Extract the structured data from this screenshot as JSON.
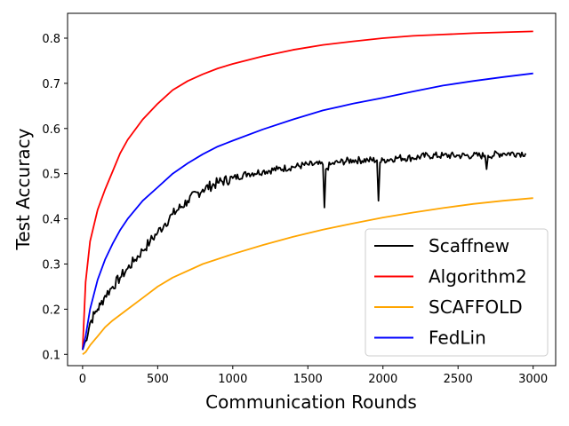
{
  "chart_data": {
    "type": "line",
    "title": "",
    "xlabel": "Communication Rounds",
    "ylabel": "Test Accuracy",
    "xlim": [
      -100,
      3150
    ],
    "ylim": [
      0.075,
      0.855
    ],
    "xticks": [
      0,
      500,
      1000,
      1500,
      2000,
      2500,
      3000
    ],
    "yticks": [
      0.1,
      0.2,
      0.3,
      0.4,
      0.5,
      0.6,
      0.7,
      0.8
    ],
    "grid": false,
    "legend_position": "bottom-right",
    "series": [
      {
        "name": "Scaffnew",
        "color": "#000000",
        "noisy": true,
        "x": [
          0,
          20,
          50,
          80,
          100,
          120,
          150,
          200,
          250,
          300,
          350,
          400,
          450,
          500,
          550,
          600,
          700,
          800,
          900,
          1000,
          1100,
          1200,
          1300,
          1400,
          1500,
          1600,
          1610,
          1620,
          1650,
          1700,
          1800,
          1900,
          1960,
          1970,
          1980,
          2000,
          2100,
          2200,
          2300,
          2400,
          2500,
          2600,
          2680,
          2690,
          2700,
          2800,
          2900,
          2950
        ],
        "y": [
          0.11,
          0.13,
          0.17,
          0.19,
          0.2,
          0.21,
          0.23,
          0.25,
          0.27,
          0.29,
          0.31,
          0.33,
          0.35,
          0.37,
          0.39,
          0.41,
          0.44,
          0.465,
          0.48,
          0.49,
          0.5,
          0.505,
          0.51,
          0.515,
          0.52,
          0.52,
          0.425,
          0.51,
          0.52,
          0.525,
          0.53,
          0.53,
          0.53,
          0.44,
          0.525,
          0.53,
          0.535,
          0.535,
          0.54,
          0.54,
          0.54,
          0.54,
          0.54,
          0.51,
          0.54,
          0.545,
          0.545,
          0.545
        ]
      },
      {
        "name": "Algorithm2",
        "color": "#ff0000",
        "noisy": false,
        "x": [
          0,
          20,
          50,
          100,
          150,
          200,
          250,
          300,
          400,
          500,
          600,
          700,
          800,
          900,
          1000,
          1200,
          1400,
          1600,
          1800,
          2000,
          2200,
          2400,
          2600,
          2800,
          3000
        ],
        "y": [
          0.11,
          0.26,
          0.35,
          0.42,
          0.465,
          0.505,
          0.545,
          0.575,
          0.62,
          0.655,
          0.685,
          0.705,
          0.72,
          0.733,
          0.743,
          0.76,
          0.774,
          0.785,
          0.793,
          0.8,
          0.805,
          0.808,
          0.811,
          0.813,
          0.815
        ]
      },
      {
        "name": "SCAFFOLD",
        "color": "#ffa500",
        "noisy": false,
        "x": [
          0,
          20,
          50,
          100,
          150,
          200,
          300,
          400,
          500,
          600,
          800,
          1000,
          1200,
          1400,
          1600,
          1800,
          2000,
          2200,
          2400,
          2600,
          2800,
          3000
        ],
        "y": [
          0.1,
          0.105,
          0.12,
          0.14,
          0.16,
          0.175,
          0.2,
          0.225,
          0.25,
          0.27,
          0.3,
          0.322,
          0.342,
          0.36,
          0.376,
          0.39,
          0.403,
          0.414,
          0.424,
          0.433,
          0.44,
          0.446
        ]
      },
      {
        "name": "FedLin",
        "color": "#0000ff",
        "noisy": false,
        "x": [
          0,
          20,
          50,
          100,
          150,
          200,
          250,
          300,
          400,
          500,
          600,
          700,
          800,
          900,
          1000,
          1200,
          1400,
          1600,
          1800,
          2000,
          2200,
          2400,
          2600,
          2800,
          3000
        ],
        "y": [
          0.11,
          0.14,
          0.2,
          0.265,
          0.31,
          0.345,
          0.375,
          0.4,
          0.44,
          0.47,
          0.5,
          0.523,
          0.543,
          0.56,
          0.573,
          0.598,
          0.62,
          0.64,
          0.655,
          0.668,
          0.682,
          0.695,
          0.705,
          0.714,
          0.722
        ]
      }
    ]
  }
}
